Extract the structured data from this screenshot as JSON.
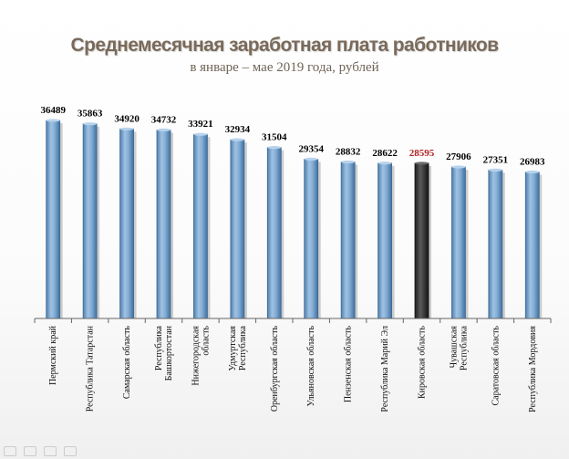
{
  "title": "Среднемесячная заработная плата работников",
  "subtitle": "в январе – мае 2019  года, рублей",
  "colors": {
    "bar_default": "#7ea6cc",
    "bar_highlight": "#3a3a3a",
    "label_default": "#000000",
    "label_highlight": "#b22222"
  },
  "chart_data": {
    "type": "bar",
    "highlight_index": 10,
    "categories": [
      [
        "Пермский край"
      ],
      [
        "Республика Татарстан"
      ],
      [
        "Самарская область"
      ],
      [
        "Республика",
        "Башкортостан"
      ],
      [
        "Нижегородская",
        "область"
      ],
      [
        "Удмуртская",
        "Республика"
      ],
      [
        "Оренбургская  область"
      ],
      [
        "Ульяновская область"
      ],
      [
        "Пензенская область"
      ],
      [
        "Республика Марий Эл"
      ],
      [
        "Кировская область"
      ],
      [
        "Чувашская",
        "Республика"
      ],
      [
        "Саратовская  область"
      ],
      [
        "Республика Мордовия"
      ]
    ],
    "values": [
      36489,
      35863,
      34920,
      34732,
      33921,
      32934,
      31504,
      29354,
      28832,
      28622,
      28595,
      27906,
      27351,
      26983
    ],
    "ylim": [
      0,
      38500
    ]
  },
  "toolbar": [
    "prev-icon",
    "pen-icon",
    "menu-icon",
    "next-icon"
  ]
}
